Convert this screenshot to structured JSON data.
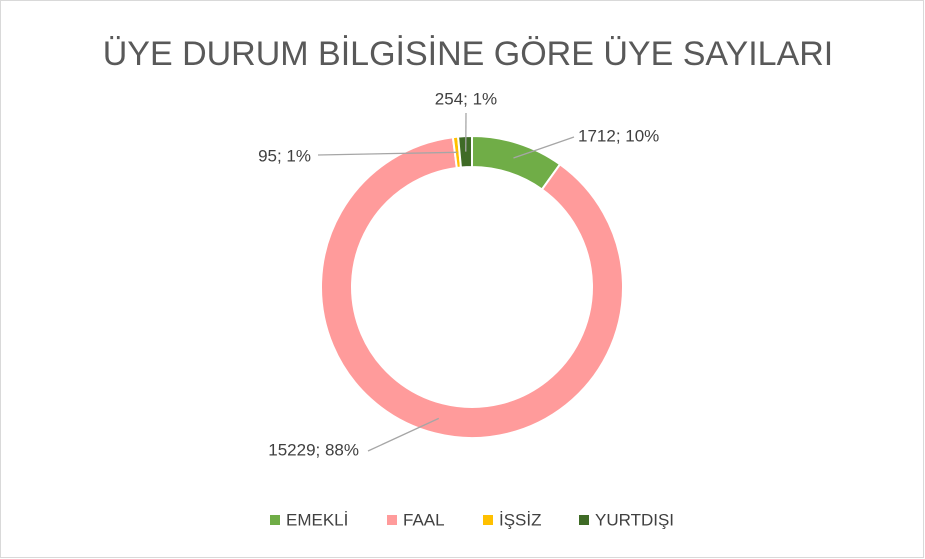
{
  "chart_data": {
    "type": "donut",
    "title": "ÜYE DURUM BİLGİSİNE GÖRE ÜYE SAYILARI",
    "categories": [
      "EMEKLİ",
      "FAAL",
      "İŞSİZ",
      "YURTDIŞI"
    ],
    "values": [
      1712,
      15229,
      95,
      254
    ],
    "value_labels": [
      "1712; 10%",
      "15229; 88%",
      "95; 1%",
      "254; 1%"
    ],
    "colors": [
      "#70ad47",
      "#ff9b9b",
      "#ffc000",
      "#3f6b26"
    ],
    "legend": "bottom"
  }
}
